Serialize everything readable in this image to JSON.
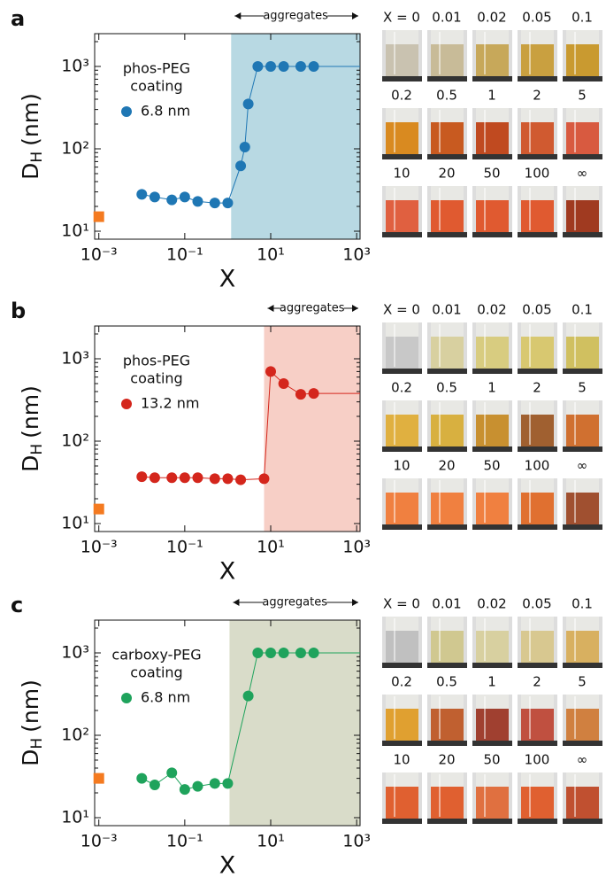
{
  "chart_data": [
    {
      "type": "line",
      "panel": "a",
      "xlabel": "X",
      "ylabel": {
        "main": "D",
        "sub": "H",
        "unit": "(nm)"
      },
      "log_x": true,
      "log_y": true,
      "xlim": [
        0.0008,
        1200
      ],
      "ylim": [
        8,
        2500
      ],
      "xticks": [
        {
          "value": 0.001,
          "label": "10⁻³"
        },
        {
          "value": 0.1,
          "label": "10⁻¹"
        },
        {
          "value": 10,
          "label": "10¹"
        },
        {
          "value": 1000,
          "label": "10³"
        }
      ],
      "yticks": [
        {
          "value": 10,
          "label": "10¹"
        },
        {
          "value": 100,
          "label": "10²"
        },
        {
          "value": 1000,
          "label": "10³"
        }
      ],
      "shade": {
        "from": 1.2,
        "to": 1200,
        "color": "#b8d9e3"
      },
      "region_label": "aggregates",
      "annotation": [
        "phos-PEG",
        "coating"
      ],
      "series": [
        {
          "name": "6.8 nm",
          "color": "#1f77b4",
          "marker": "circle",
          "x": [
            0.01,
            0.02,
            0.05,
            0.1,
            0.2,
            0.5,
            1,
            2,
            2.5,
            3,
            5,
            10,
            20,
            50,
            100
          ],
          "values": [
            28,
            26,
            24,
            26,
            23,
            22,
            22,
            62,
            105,
            350,
            1000,
            1000,
            1000,
            1000,
            1000
          ]
        },
        {
          "color": "#f47a20",
          "marker": "square",
          "x": [
            0.001
          ],
          "values": [
            15
          ]
        }
      ],
      "photo_labels": [
        "X = 0",
        "0.01",
        "0.02",
        "0.05",
        "0.1",
        "0.2",
        "0.5",
        "1",
        "2",
        "5",
        "10",
        "20",
        "50",
        "100",
        "∞"
      ]
    },
    {
      "type": "line",
      "panel": "b",
      "xlabel": "X",
      "ylabel": {
        "main": "D",
        "sub": "H",
        "unit": "(nm)"
      },
      "log_x": true,
      "log_y": true,
      "xlim": [
        0.0008,
        1200
      ],
      "ylim": [
        8,
        2500
      ],
      "xticks": [
        {
          "value": 0.001,
          "label": "10⁻³"
        },
        {
          "value": 0.1,
          "label": "10⁻¹"
        },
        {
          "value": 10,
          "label": "10¹"
        },
        {
          "value": 1000,
          "label": "10³"
        }
      ],
      "yticks": [
        {
          "value": 10,
          "label": "10¹"
        },
        {
          "value": 100,
          "label": "10²"
        },
        {
          "value": 1000,
          "label": "10³"
        }
      ],
      "shade": {
        "from": 7,
        "to": 1200,
        "color": "#f7cfc6"
      },
      "region_label": "aggregates",
      "annotation": [
        "phos-PEG",
        "coating"
      ],
      "series": [
        {
          "name": "13.2 nm",
          "color": "#d4261c",
          "marker": "circle",
          "x": [
            0.01,
            0.02,
            0.05,
            0.1,
            0.2,
            0.5,
            1,
            2,
            7,
            10,
            20,
            50,
            100
          ],
          "values": [
            37,
            36,
            36,
            36,
            36,
            35,
            35,
            34,
            35,
            700,
            500,
            370,
            380
          ]
        },
        {
          "color": "#f47a20",
          "marker": "square",
          "x": [
            0.001
          ],
          "values": [
            15
          ]
        }
      ],
      "photo_labels": [
        "X = 0",
        "0.01",
        "0.02",
        "0.05",
        "0.1",
        "0.2",
        "0.5",
        "1",
        "2",
        "5",
        "10",
        "20",
        "50",
        "100",
        "∞"
      ]
    },
    {
      "type": "line",
      "panel": "c",
      "xlabel": "X",
      "ylabel": {
        "main": "D",
        "sub": "H",
        "unit": "(nm)"
      },
      "log_x": true,
      "log_y": true,
      "xlim": [
        0.0008,
        1200
      ],
      "ylim": [
        8,
        2500
      ],
      "xticks": [
        {
          "value": 0.001,
          "label": "10⁻³"
        },
        {
          "value": 0.1,
          "label": "10⁻¹"
        },
        {
          "value": 10,
          "label": "10¹"
        },
        {
          "value": 1000,
          "label": "10³"
        }
      ],
      "yticks": [
        {
          "value": 10,
          "label": "10¹"
        },
        {
          "value": 100,
          "label": "10²"
        },
        {
          "value": 1000,
          "label": "10³"
        }
      ],
      "shade": {
        "from": 1.1,
        "to": 1200,
        "color": "#d9dcc9"
      },
      "region_label": "aggregates",
      "annotation": [
        "carboxy-PEG",
        "coating"
      ],
      "series": [
        {
          "name": "6.8 nm",
          "color": "#1fa35c",
          "marker": "circle",
          "x": [
            0.01,
            0.02,
            0.05,
            0.1,
            0.2,
            0.5,
            1,
            3,
            5,
            10,
            20,
            50,
            100
          ],
          "values": [
            30,
            25,
            35,
            22,
            24,
            26,
            26,
            300,
            1000,
            1000,
            1000,
            1000,
            1000
          ]
        },
        {
          "color": "#f47a20",
          "marker": "square",
          "x": [
            0.001
          ],
          "values": [
            30
          ]
        }
      ],
      "photo_labels": [
        "X = 0",
        "0.01",
        "0.02",
        "0.05",
        "0.1",
        "0.2",
        "0.5",
        "1",
        "2",
        "5",
        "10",
        "20",
        "50",
        "100",
        "∞"
      ]
    }
  ]
}
